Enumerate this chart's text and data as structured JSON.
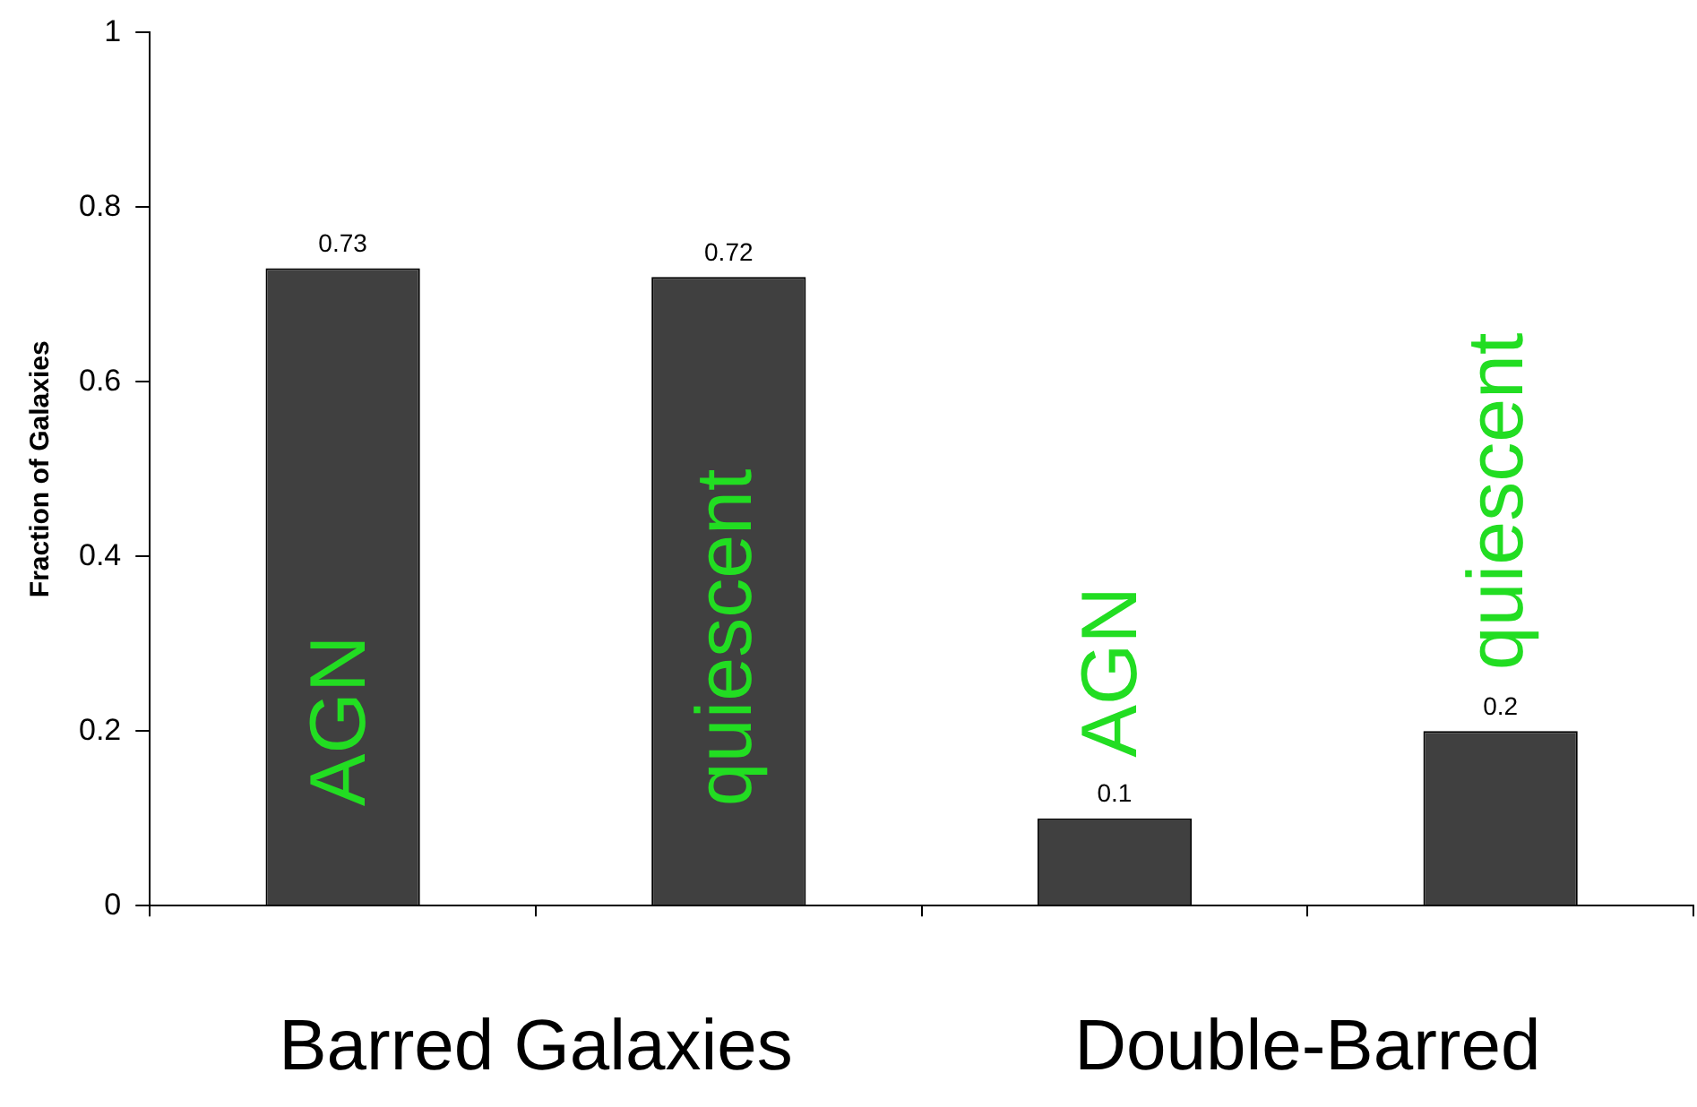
{
  "chart_data": {
    "type": "bar",
    "ylabel": "Fraction of Galaxies",
    "categories": [
      "AGN",
      "quiescent",
      "AGN",
      "quiescent"
    ],
    "values": [
      0.73,
      0.72,
      0.1,
      0.2
    ],
    "color": "#404040",
    "ylim": [
      0,
      1
    ],
    "yticks": [
      0,
      0.2,
      0.4,
      0.6,
      0.8,
      1
    ],
    "grid": false,
    "legend": false,
    "data_labels": true,
    "annotations": [
      "Barred Galaxies",
      "Double-Barred"
    ]
  }
}
